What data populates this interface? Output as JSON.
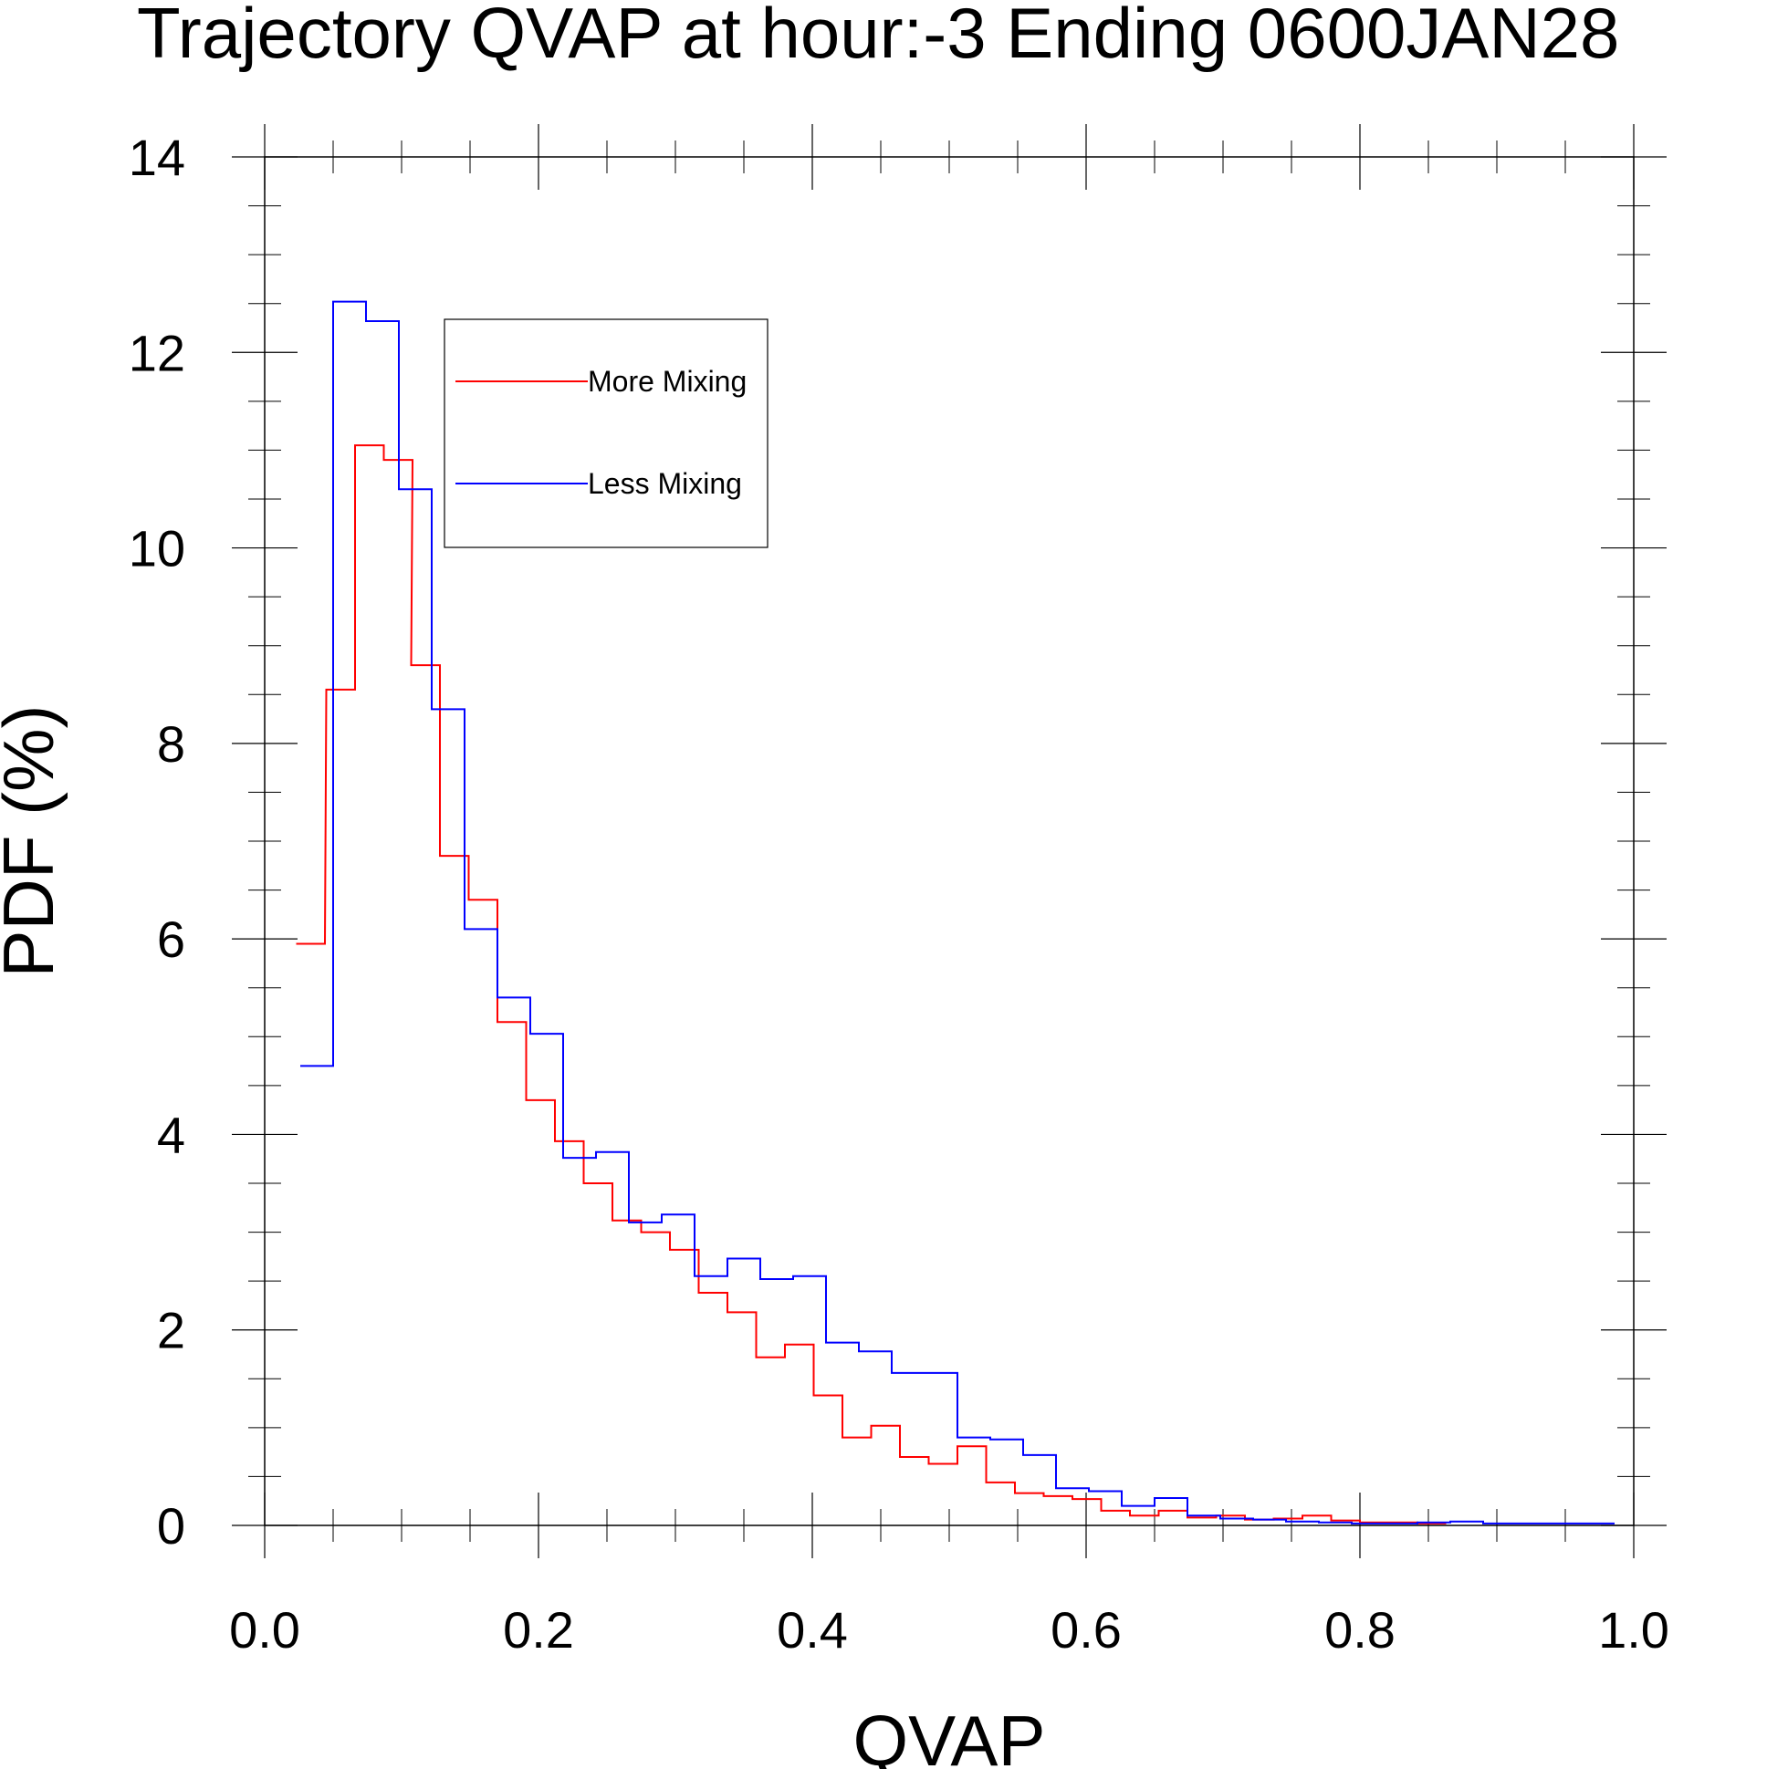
{
  "chart_data": {
    "type": "line",
    "title": "Trajectory QVAP at hour:-3 Ending 0600JAN28",
    "xlabel": "QVAP",
    "ylabel": "PDF (%)",
    "xlim": [
      0.0,
      1.0
    ],
    "ylim": [
      0,
      14
    ],
    "x_ticks": [
      "0.0",
      "0.2",
      "0.4",
      "0.6",
      "0.8",
      "1.0"
    ],
    "y_ticks": [
      "0",
      "2",
      "4",
      "6",
      "8",
      "10",
      "12",
      "14"
    ],
    "grid": false,
    "legend_position": "top-left",
    "series": [
      {
        "name": "More Mixing",
        "color": "#ff0000",
        "x": [
          0.023,
          0.045,
          0.066,
          0.087,
          0.107,
          0.128,
          0.149,
          0.17,
          0.191,
          0.212,
          0.233,
          0.254,
          0.275,
          0.296,
          0.317,
          0.338,
          0.359,
          0.38,
          0.401,
          0.422,
          0.443,
          0.464,
          0.485,
          0.506,
          0.527,
          0.548,
          0.569,
          0.59,
          0.611,
          0.632,
          0.653,
          0.674,
          0.695,
          0.716,
          0.737,
          0.758,
          0.779,
          0.8,
          0.821,
          0.842
        ],
        "y": [
          5.95,
          8.55,
          11.05,
          10.9,
          8.8,
          6.85,
          6.4,
          5.15,
          4.35,
          3.93,
          3.5,
          3.12,
          3.0,
          2.82,
          2.38,
          2.18,
          1.72,
          1.85,
          1.33,
          0.9,
          1.02,
          0.7,
          0.63,
          0.81,
          0.44,
          0.33,
          0.3,
          0.27,
          0.15,
          0.1,
          0.15,
          0.08,
          0.1,
          0.06,
          0.07,
          0.1,
          0.05,
          0.03,
          0.03,
          0.02
        ]
      },
      {
        "name": "Less Mixing",
        "color": "#0000ff",
        "x": [
          0.026,
          0.05,
          0.074,
          0.098,
          0.122,
          0.146,
          0.17,
          0.194,
          0.218,
          0.242,
          0.266,
          0.29,
          0.314,
          0.338,
          0.362,
          0.386,
          0.41,
          0.434,
          0.458,
          0.482,
          0.506,
          0.53,
          0.554,
          0.578,
          0.602,
          0.626,
          0.65,
          0.674,
          0.698,
          0.722,
          0.746,
          0.77,
          0.794,
          0.818,
          0.842,
          0.866,
          0.89,
          0.914,
          0.938,
          0.962
        ],
        "y": [
          4.7,
          12.52,
          12.32,
          10.6,
          8.35,
          6.1,
          5.4,
          5.03,
          3.76,
          3.82,
          3.1,
          3.18,
          2.55,
          2.73,
          2.52,
          2.55,
          1.87,
          1.78,
          1.56,
          1.56,
          0.9,
          0.88,
          0.72,
          0.38,
          0.35,
          0.2,
          0.28,
          0.1,
          0.07,
          0.06,
          0.04,
          0.03,
          0.02,
          0.02,
          0.03,
          0.04,
          0.02,
          0.02,
          0.02,
          0.02
        ]
      }
    ]
  }
}
